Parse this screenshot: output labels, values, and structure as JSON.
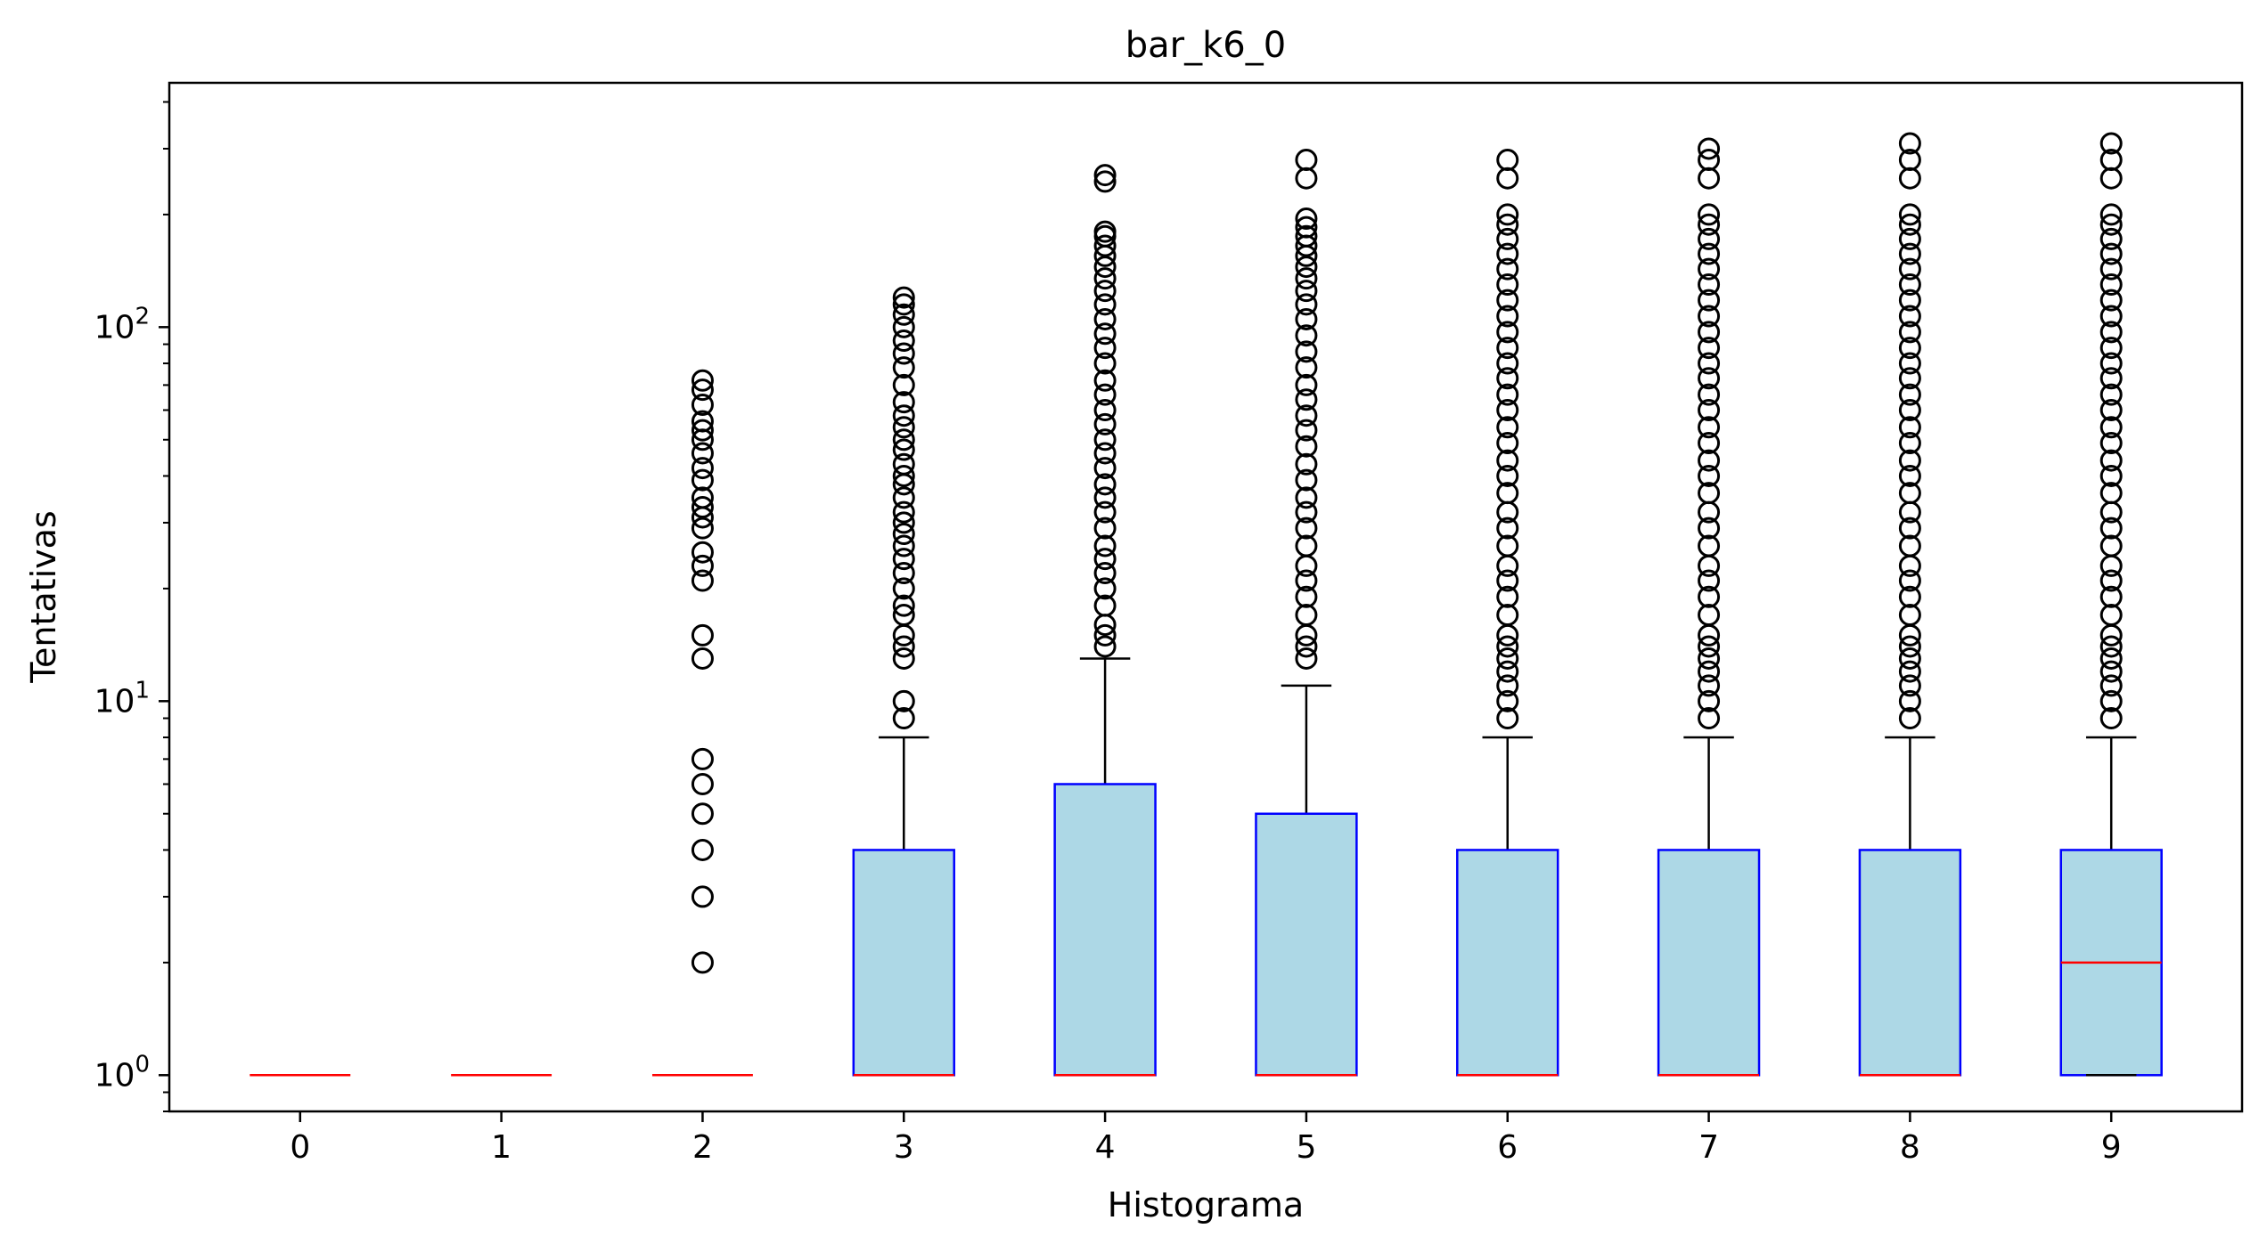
{
  "chart_data": {
    "type": "boxplot",
    "title": "bar_k6_0",
    "xlabel": "Histograma",
    "ylabel": "Tentativas",
    "yscale": "log",
    "ylim": [
      0.8,
      450
    ],
    "grid": false,
    "legend": "none",
    "y_tick_labels": [
      {
        "value": 1,
        "base": "10",
        "exp": "0"
      },
      {
        "value": 10,
        "base": "10",
        "exp": "1"
      },
      {
        "value": 100,
        "base": "10",
        "exp": "2"
      }
    ],
    "colors": {
      "box_fill": "#add8e6",
      "box_edge": "#0000ff",
      "median": "#ff0000",
      "whisker": "#000000",
      "flier_edge": "#000000"
    },
    "categories": [
      "0",
      "1",
      "2",
      "3",
      "4",
      "5",
      "6",
      "7",
      "8",
      "9"
    ],
    "boxes": [
      {
        "label": "0",
        "whislo": 1,
        "q1": 1,
        "med": 1,
        "q3": 1,
        "whishi": 1,
        "fliers": []
      },
      {
        "label": "1",
        "whislo": 1,
        "q1": 1,
        "med": 1,
        "q3": 1,
        "whishi": 1,
        "fliers": []
      },
      {
        "label": "2",
        "whislo": 1,
        "q1": 1,
        "med": 1,
        "q3": 1,
        "whishi": 1,
        "fliers": [
          2,
          3,
          4,
          5,
          6,
          7,
          13,
          15,
          21,
          23,
          25,
          29,
          31,
          33,
          35,
          39,
          42,
          46,
          50,
          53,
          56,
          62,
          68,
          72
        ]
      },
      {
        "label": "3",
        "whislo": 1,
        "q1": 1,
        "med": 1,
        "q3": 4,
        "whishi": 8,
        "fliers": [
          9,
          10,
          13,
          14,
          15,
          17,
          18,
          20,
          22,
          24,
          26,
          28,
          30,
          32,
          35,
          38,
          40,
          43,
          47,
          50,
          54,
          58,
          63,
          70,
          78,
          85,
          92,
          100,
          108,
          115,
          120
        ]
      },
      {
        "label": "4",
        "whislo": 1,
        "q1": 1,
        "med": 1,
        "q3": 6,
        "whishi": 13,
        "fliers": [
          14,
          15,
          16,
          18,
          20,
          22,
          24,
          26,
          29,
          32,
          35,
          38,
          42,
          46,
          50,
          55,
          60,
          66,
          72,
          80,
          88,
          96,
          105,
          115,
          125,
          135,
          145,
          155,
          165,
          175,
          180,
          245,
          255
        ]
      },
      {
        "label": "5",
        "whislo": 1,
        "q1": 1,
        "med": 1,
        "q3": 5,
        "whishi": 11,
        "fliers": [
          13,
          14,
          15,
          17,
          19,
          21,
          23,
          26,
          29,
          32,
          35,
          39,
          43,
          48,
          53,
          58,
          64,
          70,
          78,
          86,
          95,
          105,
          115,
          125,
          135,
          145,
          155,
          165,
          175,
          185,
          195,
          250,
          280
        ]
      },
      {
        "label": "6",
        "whislo": 1,
        "q1": 1,
        "med": 1,
        "q3": 4,
        "whishi": 8,
        "fliers": [
          9,
          10,
          11,
          12,
          13,
          14,
          15,
          17,
          19,
          21,
          23,
          26,
          29,
          32,
          36,
          40,
          44,
          49,
          54,
          60,
          66,
          73,
          80,
          88,
          97,
          107,
          118,
          130,
          143,
          157,
          172,
          188,
          200,
          250,
          280
        ]
      },
      {
        "label": "7",
        "whislo": 1,
        "q1": 1,
        "med": 1,
        "q3": 4,
        "whishi": 8,
        "fliers": [
          9,
          10,
          11,
          12,
          13,
          14,
          15,
          17,
          19,
          21,
          23,
          26,
          29,
          32,
          36,
          40,
          44,
          49,
          54,
          60,
          66,
          73,
          80,
          88,
          97,
          107,
          118,
          130,
          143,
          157,
          172,
          188,
          200,
          250,
          280,
          300
        ]
      },
      {
        "label": "8",
        "whislo": 1,
        "q1": 1,
        "med": 1,
        "q3": 4,
        "whishi": 8,
        "fliers": [
          9,
          10,
          11,
          12,
          13,
          14,
          15,
          17,
          19,
          21,
          23,
          26,
          29,
          32,
          36,
          40,
          44,
          49,
          54,
          60,
          66,
          73,
          80,
          88,
          97,
          107,
          118,
          130,
          143,
          157,
          172,
          188,
          200,
          250,
          280,
          310
        ]
      },
      {
        "label": "9",
        "whislo": 1,
        "q1": 1,
        "med": 2,
        "q3": 4,
        "whishi": 8,
        "fliers": [
          9,
          10,
          11,
          12,
          13,
          14,
          15,
          17,
          19,
          21,
          23,
          26,
          29,
          32,
          36,
          40,
          44,
          49,
          54,
          60,
          66,
          73,
          80,
          88,
          97,
          107,
          118,
          130,
          143,
          157,
          172,
          188,
          200,
          250,
          280,
          310
        ]
      }
    ]
  }
}
